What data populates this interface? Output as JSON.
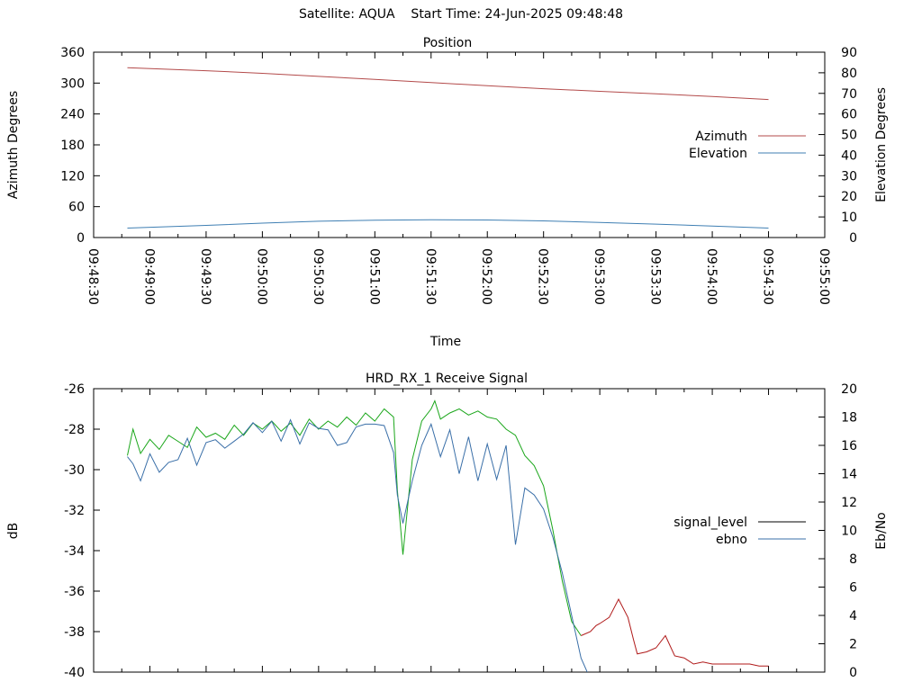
{
  "page_title": "Satellite: AQUA    Start Time: 24-Jun-2025 09:48:48",
  "colors": {
    "azimuth": "#b34a4a",
    "elevation": "#3f7fb3",
    "signal_level_high": "#1aa61a",
    "signal_level_low": "#b01a1a",
    "ebno": "#3a6fa8"
  },
  "chart_data": [
    {
      "type": "line",
      "title": "Position",
      "xlabel": "Time",
      "ylabel": "Azimuth Degrees",
      "y2label": "Elevation Degrees",
      "x_tick_labels": [
        "09:48:30",
        "09:49:00",
        "09:49:30",
        "09:50:00",
        "09:50:30",
        "09:51:00",
        "09:51:30",
        "09:52:00",
        "09:52:30",
        "09:53:00",
        "09:53:30",
        "09:54:00",
        "09:54:30",
        "09:55:00"
      ],
      "xlim": [
        "09:48:30",
        "09:55:00"
      ],
      "ylim": [
        0,
        360
      ],
      "y_ticks": [
        0,
        60,
        120,
        180,
        240,
        300,
        360
      ],
      "y2lim": [
        0,
        90
      ],
      "y2_ticks": [
        0,
        10,
        20,
        30,
        40,
        50,
        60,
        70,
        80,
        90
      ],
      "legend_position": "right",
      "series": [
        {
          "name": "Azimuth",
          "axis": "y",
          "color": "#b34a4a",
          "x": [
            "09:48:48",
            "09:49:30",
            "09:50:00",
            "09:50:30",
            "09:51:00",
            "09:51:30",
            "09:52:00",
            "09:52:30",
            "09:53:00",
            "09:53:30",
            "09:54:00",
            "09:54:30"
          ],
          "values": [
            330,
            324,
            319,
            313,
            307,
            301,
            295,
            289,
            284,
            279,
            274,
            268
          ]
        },
        {
          "name": "Elevation",
          "axis": "y2",
          "color": "#3f7fb3",
          "x": [
            "09:48:48",
            "09:49:30",
            "09:50:00",
            "09:50:30",
            "09:51:00",
            "09:51:30",
            "09:52:00",
            "09:52:30",
            "09:53:00",
            "09:53:30",
            "09:54:00",
            "09:54:30"
          ],
          "values": [
            4.6,
            5.9,
            7.0,
            7.9,
            8.4,
            8.6,
            8.5,
            8.1,
            7.3,
            6.5,
            5.6,
            4.6
          ]
        }
      ]
    },
    {
      "type": "line",
      "title": "HRD_RX_1 Receive Signal",
      "xlabel": "",
      "ylabel": "dB",
      "y2label": "Eb/No",
      "xlim": [
        "09:48:30",
        "09:55:00"
      ],
      "ylim": [
        -40,
        -26
      ],
      "y_ticks": [
        -40,
        -38,
        -36,
        -34,
        -32,
        -30,
        -28,
        -26
      ],
      "y2lim": [
        0,
        20
      ],
      "y2_ticks": [
        0,
        2,
        4,
        6,
        8,
        10,
        12,
        14,
        16,
        18,
        20
      ],
      "legend_position": "right",
      "series": [
        {
          "name": "signal_level",
          "axis": "y",
          "color": "#1aa61a",
          "low_color": "#b01a1a",
          "low_threshold": -38.2,
          "x": [
            "09:48:48",
            "09:48:51",
            "09:48:55",
            "09:49:00",
            "09:49:05",
            "09:49:10",
            "09:49:15",
            "09:49:20",
            "09:49:25",
            "09:49:30",
            "09:49:35",
            "09:49:40",
            "09:49:45",
            "09:49:50",
            "09:49:55",
            "09:50:00",
            "09:50:05",
            "09:50:10",
            "09:50:15",
            "09:50:20",
            "09:50:25",
            "09:50:30",
            "09:50:35",
            "09:50:40",
            "09:50:45",
            "09:50:50",
            "09:50:55",
            "09:51:00",
            "09:51:05",
            "09:51:10",
            "09:51:12",
            "09:51:15",
            "09:51:20",
            "09:51:25",
            "09:51:30",
            "09:51:32",
            "09:51:35",
            "09:51:40",
            "09:51:45",
            "09:51:50",
            "09:51:55",
            "09:52:00",
            "09:52:05",
            "09:52:10",
            "09:52:15",
            "09:52:20",
            "09:52:25",
            "09:52:30",
            "09:52:35",
            "09:52:40",
            "09:52:45",
            "09:52:50",
            "09:52:55",
            "09:52:58",
            "09:53:00",
            "09:53:05",
            "09:53:10",
            "09:53:15",
            "09:53:18",
            "09:53:20",
            "09:53:25",
            "09:53:30",
            "09:53:35",
            "09:53:40",
            "09:53:45",
            "09:53:50",
            "09:53:55",
            "09:54:00",
            "09:54:05",
            "09:54:10",
            "09:54:15",
            "09:54:20",
            "09:54:25",
            "09:54:30"
          ],
          "values": [
            -29.3,
            -28.0,
            -29.2,
            -28.5,
            -29.0,
            -28.3,
            -28.6,
            -28.9,
            -27.9,
            -28.4,
            -28.2,
            -28.5,
            -27.8,
            -28.3,
            -27.7,
            -28.0,
            -27.6,
            -28.1,
            -27.7,
            -28.3,
            -27.5,
            -28.0,
            -27.6,
            -27.9,
            -27.4,
            -27.8,
            -27.2,
            -27.6,
            -27.0,
            -27.4,
            -31.0,
            -34.2,
            -29.5,
            -27.6,
            -27.0,
            -26.6,
            -27.5,
            -27.2,
            -27.0,
            -27.3,
            -27.1,
            -27.4,
            -27.5,
            -28.0,
            -28.3,
            -29.3,
            -29.8,
            -30.8,
            -33.0,
            -35.5,
            -37.5,
            -38.2,
            -38.0,
            -37.7,
            -37.6,
            -37.3,
            -36.4,
            -37.3,
            -38.4,
            -39.1,
            -39.0,
            -38.8,
            -38.2,
            -39.2,
            -39.3,
            -39.6,
            -39.5,
            -39.6,
            -39.6,
            -39.6,
            -39.6,
            -39.6,
            -39.7,
            -39.7
          ]
        },
        {
          "name": "ebno",
          "axis": "y2",
          "color": "#3a6fa8",
          "x": [
            "09:48:48",
            "09:48:51",
            "09:48:55",
            "09:49:00",
            "09:49:05",
            "09:49:10",
            "09:49:15",
            "09:49:20",
            "09:49:25",
            "09:49:30",
            "09:49:35",
            "09:49:40",
            "09:49:45",
            "09:49:50",
            "09:49:55",
            "09:50:00",
            "09:50:05",
            "09:50:10",
            "09:50:15",
            "09:50:20",
            "09:50:25",
            "09:50:30",
            "09:50:35",
            "09:50:40",
            "09:50:45",
            "09:50:50",
            "09:50:55",
            "09:51:00",
            "09:51:05",
            "09:51:10",
            "09:51:12",
            "09:51:15",
            "09:51:20",
            "09:51:25",
            "09:51:30",
            "09:51:35",
            "09:51:40",
            "09:51:45",
            "09:51:50",
            "09:51:55",
            "09:52:00",
            "09:52:05",
            "09:52:10",
            "09:52:15",
            "09:52:20",
            "09:52:25",
            "09:52:30",
            "09:52:35",
            "09:52:40",
            "09:52:45",
            "09:52:50",
            "09:52:55",
            "09:53:00"
          ],
          "values": [
            15.2,
            14.7,
            13.5,
            15.4,
            14.1,
            14.8,
            15.0,
            16.5,
            14.6,
            16.2,
            16.4,
            15.8,
            16.3,
            16.8,
            17.6,
            16.9,
            17.7,
            16.3,
            17.8,
            16.1,
            17.6,
            17.2,
            17.1,
            16.0,
            16.2,
            17.3,
            17.5,
            17.5,
            17.4,
            15.5,
            12.5,
            10.5,
            13.5,
            16.0,
            17.5,
            15.2,
            17.1,
            14.0,
            16.6,
            13.5,
            16.1,
            13.6,
            16.0,
            9.0,
            13.0,
            12.5,
            11.5,
            9.5,
            7.0,
            4.0,
            1.0,
            -0.5,
            -0.5
          ]
        }
      ]
    }
  ]
}
